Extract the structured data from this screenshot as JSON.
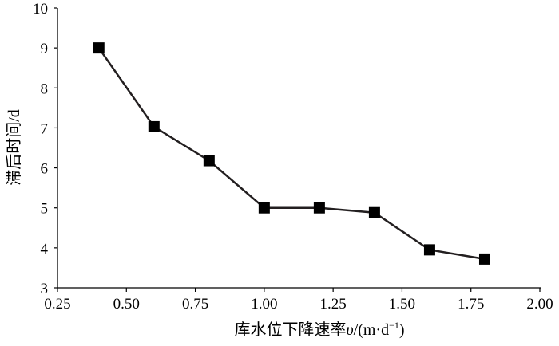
{
  "chart_data": {
    "type": "line",
    "title": "",
    "xlabel": "库水位下降速率υ/(m·d−1)",
    "xlabel_parts": {
      "main": "库水位下降速率",
      "var": "υ",
      "unit": "/(m·d",
      "sup": "−1",
      "close": ")"
    },
    "ylabel": "滞后时间/d",
    "xlim": [
      0.25,
      2.0
    ],
    "ylim": [
      3,
      10
    ],
    "xticks": [
      "0.25",
      "0.50",
      "0.75",
      "1.00",
      "1.25",
      "1.50",
      "1.75",
      "2.00"
    ],
    "yticks": [
      "3",
      "4",
      "5",
      "6",
      "7",
      "8",
      "9",
      "10"
    ],
    "grid": false,
    "marker": "square",
    "line_color": "#231f20",
    "marker_color": "#000000",
    "series": [
      {
        "x": [
          0.4,
          0.6,
          0.8,
          1.0,
          1.2,
          1.4,
          1.6,
          1.8
        ],
        "y": [
          9.0,
          7.03,
          6.18,
          5.0,
          5.0,
          4.88,
          3.95,
          3.72
        ]
      }
    ]
  }
}
